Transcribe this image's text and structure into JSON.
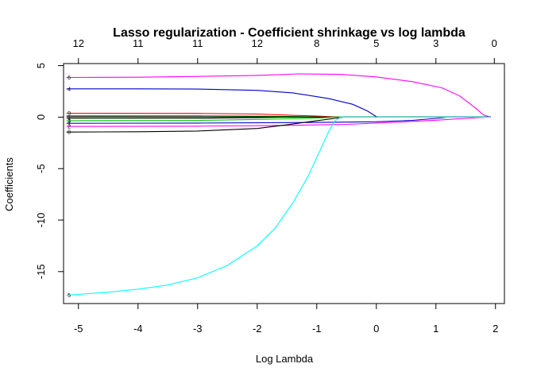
{
  "chart_data": {
    "type": "line",
    "title": "Lasso regularization - Coefficient shrinkage vs log lambda",
    "xlabel": "Log Lambda",
    "ylabel": "Coefficients",
    "xlim": [
      -5.25,
      2.15
    ],
    "ylim": [
      -18.1,
      5.2
    ],
    "x_ticks": [
      -5,
      -4,
      -3,
      -2,
      -1,
      0,
      1,
      2
    ],
    "y_ticks": [
      5,
      0,
      -5,
      -10,
      -15
    ],
    "top_ticks": [
      {
        "x": -5.0,
        "label": "12"
      },
      {
        "x": -4.0,
        "label": "11"
      },
      {
        "x": -3.0,
        "label": "11"
      },
      {
        "x": -2.0,
        "label": "12"
      },
      {
        "x": -1.0,
        "label": "8"
      },
      {
        "x": 0.0,
        "label": "5"
      },
      {
        "x": 1.0,
        "label": "3"
      },
      {
        "x": 1.98,
        "label": "0"
      }
    ],
    "grid": false,
    "legend": "none",
    "series": [
      {
        "label": "6",
        "color": "#ff00ff",
        "points": [
          [
            -5.2,
            3.85
          ],
          [
            -4.0,
            3.87
          ],
          [
            -3.0,
            3.95
          ],
          [
            -2.0,
            4.05
          ],
          [
            -1.3,
            4.2
          ],
          [
            -0.6,
            4.15
          ],
          [
            0.0,
            3.9
          ],
          [
            0.6,
            3.45
          ],
          [
            1.1,
            2.85
          ],
          [
            1.4,
            2.05
          ],
          [
            1.65,
            0.95
          ],
          [
            1.8,
            0.2
          ],
          [
            1.92,
            0.0
          ]
        ]
      },
      {
        "label": "4",
        "color": "#0000cd",
        "points": [
          [
            -5.2,
            2.75
          ],
          [
            -4.0,
            2.75
          ],
          [
            -3.0,
            2.72
          ],
          [
            -2.0,
            2.6
          ],
          [
            -1.4,
            2.35
          ],
          [
            -0.8,
            1.8
          ],
          [
            -0.4,
            1.25
          ],
          [
            -0.15,
            0.6
          ],
          [
            0.0,
            0.05
          ],
          [
            0.05,
            0.0
          ],
          [
            1.92,
            0.0
          ]
        ]
      },
      {
        "label": "9",
        "color": "#ff0000",
        "points": [
          [
            -5.2,
            0.38
          ],
          [
            -3.0,
            0.36
          ],
          [
            -2.0,
            0.3
          ],
          [
            -1.0,
            0.1
          ],
          [
            -0.6,
            0.0
          ],
          [
            1.92,
            0.0
          ]
        ]
      },
      {
        "label": "",
        "color": "#00cd00",
        "points": [
          [
            -5.2,
            0.15
          ],
          [
            -3.0,
            0.14
          ],
          [
            -2.0,
            0.1
          ],
          [
            -1.0,
            0.03
          ],
          [
            -0.8,
            0.0
          ],
          [
            1.92,
            0.0
          ]
        ]
      },
      {
        "label": "",
        "color": "#000000",
        "points": [
          [
            -5.2,
            0.05
          ],
          [
            -3.0,
            0.04
          ],
          [
            -1.5,
            0.02
          ],
          [
            -1.0,
            0.0
          ],
          [
            1.92,
            0.0
          ]
        ]
      },
      {
        "label": "1",
        "color": "#000000",
        "points": [
          [
            -5.2,
            -0.1
          ],
          [
            -3.0,
            -0.1
          ],
          [
            -2.0,
            -0.05
          ],
          [
            -1.6,
            0.0
          ],
          [
            1.92,
            0.0
          ]
        ]
      },
      {
        "label": "3",
        "color": "#00cd00",
        "points": [
          [
            -5.2,
            -0.35
          ],
          [
            -3.0,
            -0.32
          ],
          [
            -2.0,
            -0.22
          ],
          [
            -1.0,
            -0.1
          ],
          [
            -0.7,
            0.0
          ],
          [
            1.92,
            0.0
          ]
        ]
      },
      {
        "label": "1",
        "color": "#0000cd",
        "points": [
          [
            -5.2,
            -0.6
          ],
          [
            -3.0,
            -0.58
          ],
          [
            -1.0,
            -0.52
          ],
          [
            0.0,
            -0.45
          ],
          [
            0.6,
            -0.32
          ],
          [
            1.0,
            -0.12
          ],
          [
            1.2,
            0.0
          ],
          [
            1.92,
            0.0
          ]
        ]
      },
      {
        "label": "2",
        "color": "#ff00ff",
        "points": [
          [
            -5.2,
            -0.9
          ],
          [
            -3.0,
            -0.88
          ],
          [
            -1.5,
            -0.8
          ],
          [
            -0.5,
            -0.7
          ],
          [
            0.3,
            -0.5
          ],
          [
            1.0,
            -0.3
          ],
          [
            1.5,
            -0.12
          ],
          [
            1.85,
            0.0
          ],
          [
            1.92,
            0.0
          ]
        ]
      },
      {
        "label": "8",
        "color": "#000000",
        "points": [
          [
            -5.2,
            -1.45
          ],
          [
            -4.0,
            -1.42
          ],
          [
            -3.0,
            -1.35
          ],
          [
            -2.0,
            -1.1
          ],
          [
            -1.5,
            -0.75
          ],
          [
            -1.0,
            -0.35
          ],
          [
            -0.6,
            -0.05
          ],
          [
            -0.55,
            0.0
          ],
          [
            1.92,
            0.0
          ]
        ]
      },
      {
        "label": "5",
        "color": "#00ffff",
        "points": [
          [
            -5.2,
            -17.3
          ],
          [
            -4.5,
            -17.0
          ],
          [
            -4.0,
            -16.7
          ],
          [
            -3.5,
            -16.3
          ],
          [
            -3.0,
            -15.6
          ],
          [
            -2.5,
            -14.4
          ],
          [
            -2.0,
            -12.5
          ],
          [
            -1.7,
            -10.8
          ],
          [
            -1.4,
            -8.3
          ],
          [
            -1.15,
            -5.8
          ],
          [
            -0.95,
            -3.3
          ],
          [
            -0.8,
            -1.4
          ],
          [
            -0.7,
            -0.4
          ],
          [
            -0.6,
            0.0
          ],
          [
            1.92,
            0.0
          ]
        ]
      }
    ]
  }
}
